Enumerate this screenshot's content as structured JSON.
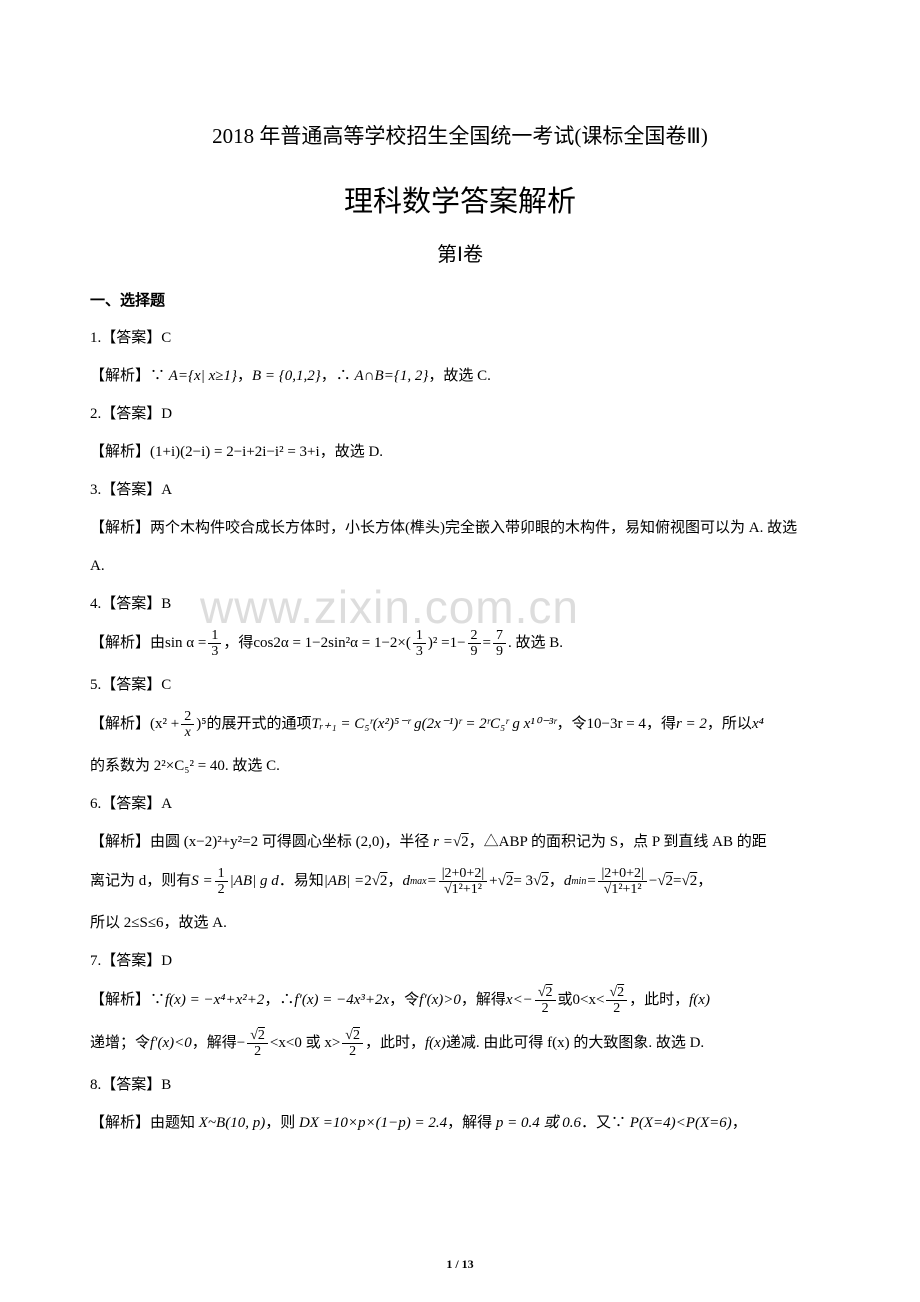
{
  "colors": {
    "text": "#000000",
    "bg": "#ffffff",
    "watermark": "#dddddd"
  },
  "typography": {
    "body_fontsize": 15,
    "title_main_fontsize": 21,
    "title_sub_fontsize": 29,
    "title_section_fontsize": 20,
    "watermark_fontsize": 46,
    "footer_fontsize": 12,
    "line_height": 2.4
  },
  "watermark": "www.zixin.com.cn",
  "footer": "1 / 13",
  "title_main": "2018 年普通高等学校招生全国统一考试(课标全国卷Ⅲ)",
  "title_sub": "理科数学答案解析",
  "title_section": "第Ⅰ卷",
  "section_header": "一、选择题",
  "q1": {
    "ans": "1.【答案】C",
    "exp_pre": "【解析】∵ ",
    "A": "A={x| x≥1}",
    "sep1": "，",
    "B": "B = {0,1,2}",
    "sep2": "，∴ ",
    "inter": "A∩B={1, 2}",
    "tail": "，故选 C."
  },
  "q2": {
    "ans": "2.【答案】D",
    "exp_pre": "【解析】",
    "math": "(1+i)(2−i) = 2−i+2i−i² = 3+i",
    "tail": "，故选 D."
  },
  "q3": {
    "ans": "3.【答案】A",
    "exp": "【解析】两个木构件咬合成长方体时，小长方体(榫头)完全嵌入带卯眼的木构件，易知俯视图可以为 A. 故选",
    "tail": "A."
  },
  "q4": {
    "ans": "4.【答案】B",
    "exp_pre": "【解析】由 ",
    "sin_lhs": "sin α =",
    "frac1_num": "1",
    "frac1_den": "3",
    "mid1": "，得 ",
    "cos2a": "cos2α = 1−2sin²α = 1−2×(",
    "frac2_num": "1",
    "frac2_den": "3",
    "mid2": ")² =1−",
    "frac3_num": "2",
    "frac3_den": "9",
    "eq": "=",
    "frac4_num": "7",
    "frac4_den": "9",
    "tail": ". 故选 B."
  },
  "q5": {
    "ans": "5.【答案】C",
    "exp_pre": "【解析】",
    "expr_open": "(x² +",
    "frac1_num": "2",
    "frac1_den": "x",
    "expr_close": ")⁵",
    "mid1": " 的展开式的通项 ",
    "term": "Tᵣ₊₁ = C₅ʳ(x²)⁵⁻ʳ g(2x⁻¹)ʳ = 2ʳC₅ʳ g x¹⁰⁻³ʳ",
    "mid2": "，令 ",
    "cond": "10−3r = 4",
    "mid3": "，得 ",
    "r": "r = 2",
    "mid4": "，所以 ",
    "x4": "x⁴",
    "line2_pre": "的系数为 ",
    "coef": "2²×C₅² = 40",
    "tail": ". 故选 C."
  },
  "q6": {
    "ans": "6.【答案】A",
    "exp_pre": "【解析】由圆 ",
    "circle": "(x−2)²+y²=2",
    "mid1": " 可得圆心坐标 ",
    "center": "(2,0)",
    "mid2": "，半径 ",
    "radius_lhs": "r =",
    "radius_val": "2",
    "mid3": "，△ABP 的面积记为 S，点 P 到直线 AB 的距",
    "line2_pre": "离记为 d，则有 ",
    "S_lhs": "S =",
    "Sfrac_num": "1",
    "Sfrac_den": "2",
    "S_rest": "|AB| g d",
    "mid4": "．易知 ",
    "AB_lhs": "|AB| =",
    "AB_val": "2",
    "AB_sqrt": "2",
    "mid5": "，",
    "dmax_lhs": "d_max =",
    "dmax_frac_num": "|2+0+2|",
    "dmax_frac_den_sqrt": "1²+1²",
    "plus": "+",
    "dmax_plus_sqrt": "2",
    "dmax_eq": "= 3",
    "dmax_res_sqrt": "2",
    "mid6": "，",
    "dmin_lhs": "d_min =",
    "dmin_frac_num": "|2+0+2|",
    "dmin_frac_den_sqrt": "1²+1²",
    "minus": "−",
    "dmin_sqrt": "2",
    "dmin_eq": "=",
    "dmin_res_sqrt": "2",
    "comma": "，",
    "line3": "所以 2≤S≤6，故选 A."
  },
  "q7": {
    "ans": "7.【答案】D",
    "exp_pre": "【解析】∵ ",
    "fx": "f(x) = −x⁴+x²+2",
    "mid1": "，∴ ",
    "fpx": "f′(x) = −4x³+2x",
    "mid2": "，令 ",
    "cond1": "f′(x)>0",
    "mid3": "，解得 ",
    "xlt_lhs": "x<−",
    "frac1_num_sqrt": "2",
    "frac1_den": "2",
    "or": " 或 ",
    "range2_lhs": "0<x<",
    "frac2_num_sqrt": "2",
    "frac2_den": "2",
    "mid4": "，此时，",
    "fxinc": "f(x)",
    "line2_pre": "递增；令 ",
    "cond2": "f′(x)<0",
    "l2_mid1": "，解得 ",
    "range3_lhs": "−",
    "frac3_num_sqrt": "2",
    "frac3_den": "2",
    "l2_mid2": "<x<0 或 x>",
    "frac4_num_sqrt": "2",
    "frac4_den": "2",
    "l2_mid3": "，此时，",
    "fxdec": "f(x)",
    "l2_tail": " 递减. 由此可得 f(x) 的大致图象. 故选 D."
  },
  "q8": {
    "ans": "8.【答案】B",
    "exp_pre": "【解析】由题知 ",
    "dist": "X~B(10, p)",
    "mid1": "，则 ",
    "dx": "DX =10×p×(1−p) = 2.4",
    "mid2": "，解得 ",
    "p": "p = 0.4 或 0.6",
    "mid3": "．又∵ ",
    "ineq": "P(X=4)<P(X=6)",
    "tail": "，"
  }
}
